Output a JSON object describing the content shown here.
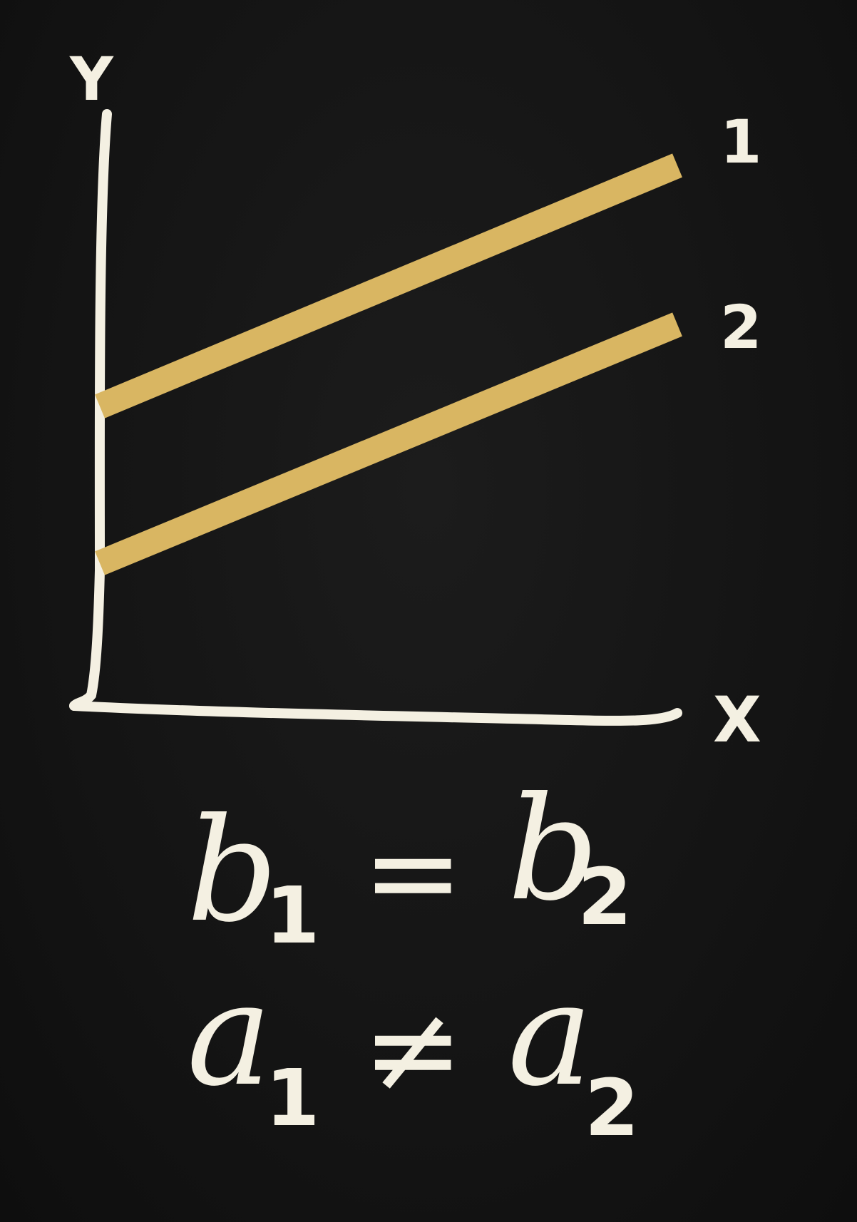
{
  "diagram": {
    "axis_labels": {
      "y": "Y",
      "x": "X"
    },
    "lines": [
      {
        "label": "1"
      },
      {
        "label": "2"
      }
    ],
    "colors": {
      "background": "#121212",
      "chalk": "#f4f0e2",
      "line_stroke": "#d9b662"
    }
  },
  "equations": [
    {
      "lhs_var": "b",
      "lhs_sub": "1",
      "operator": "=",
      "rhs_var": "b",
      "rhs_sub": "2"
    },
    {
      "lhs_var": "a",
      "lhs_sub": "1",
      "operator": "≠",
      "rhs_var": "a",
      "rhs_sub": "2"
    }
  ]
}
